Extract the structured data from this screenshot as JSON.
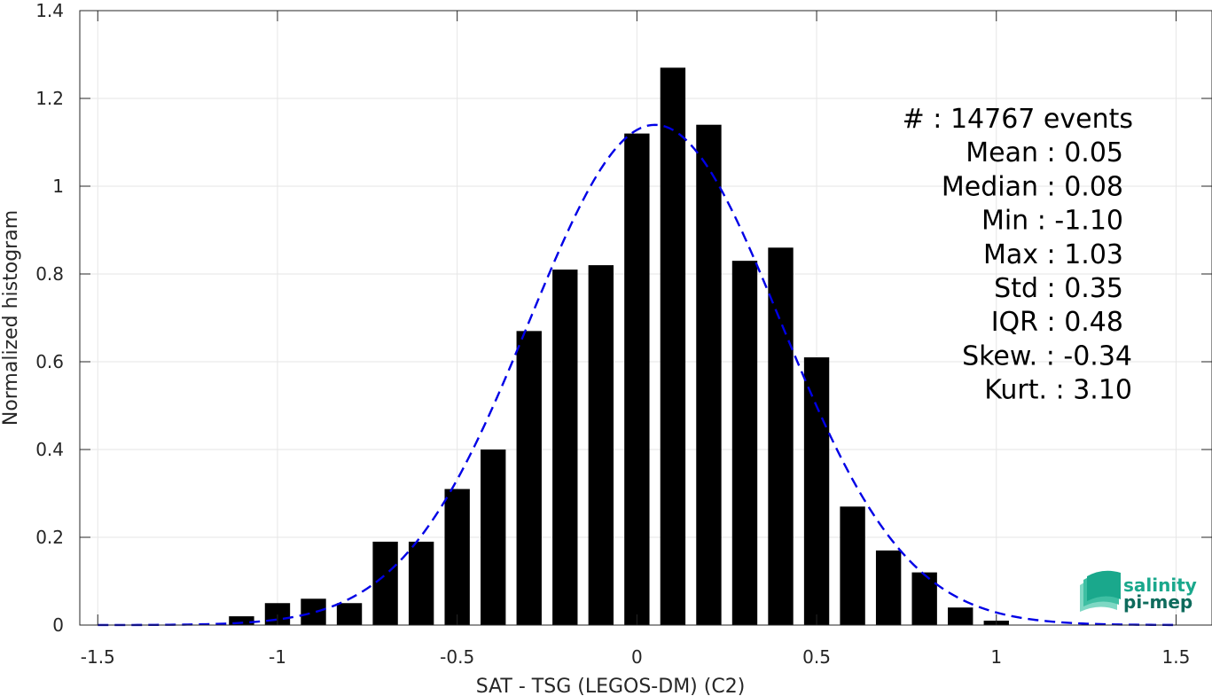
{
  "chart_data": {
    "type": "bar",
    "xlabel": "SAT - TSG (LEGOS-DM) (C2)",
    "ylabel": "Normalized histogram",
    "xlim": [
      -1.55,
      1.6
    ],
    "ylim": [
      0,
      1.4
    ],
    "xticks": [
      "-1.5",
      "-1",
      "-0.5",
      "0",
      "0.5",
      "1",
      "1.5"
    ],
    "yticks": [
      "0",
      "0.2",
      "0.4",
      "0.6",
      "0.8",
      "1",
      "1.2",
      "1.4"
    ],
    "grid": true,
    "bin_width": 0.1,
    "bar_color": "#000000",
    "bins": [
      {
        "x": -1.1,
        "y": 0.02
      },
      {
        "x": -1.0,
        "y": 0.05
      },
      {
        "x": -0.9,
        "y": 0.06
      },
      {
        "x": -0.8,
        "y": 0.05
      },
      {
        "x": -0.7,
        "y": 0.19
      },
      {
        "x": -0.6,
        "y": 0.19
      },
      {
        "x": -0.5,
        "y": 0.31
      },
      {
        "x": -0.4,
        "y": 0.4
      },
      {
        "x": -0.3,
        "y": 0.67
      },
      {
        "x": -0.2,
        "y": 0.81
      },
      {
        "x": -0.1,
        "y": 0.82
      },
      {
        "x": 0.0,
        "y": 1.12
      },
      {
        "x": 0.1,
        "y": 1.27
      },
      {
        "x": 0.2,
        "y": 1.14
      },
      {
        "x": 0.3,
        "y": 0.83
      },
      {
        "x": 0.4,
        "y": 0.86
      },
      {
        "x": 0.5,
        "y": 0.61
      },
      {
        "x": 0.6,
        "y": 0.27
      },
      {
        "x": 0.7,
        "y": 0.17
      },
      {
        "x": 0.8,
        "y": 0.12
      },
      {
        "x": 0.9,
        "y": 0.04
      },
      {
        "x": 1.0,
        "y": 0.01
      }
    ],
    "fit_curve": {
      "style": "dashed",
      "color": "#0000e6",
      "mean": 0.05,
      "std": 0.35,
      "x_range": [
        -1.5,
        1.5
      ]
    }
  },
  "stats": {
    "lines": [
      "#  : 14767 events",
      "Mean : 0.05",
      "Median : 0.08",
      "Min : -1.10",
      "Max : 1.03",
      "Std : 0.35",
      "IQR : 0.48",
      "Skew. : -0.34",
      "Kurt. : 3.10"
    ]
  },
  "logo": {
    "line1": "salinity",
    "line2": "pi-mep",
    "color": "#1aa88c",
    "color_dark": "#0e6b5c"
  }
}
